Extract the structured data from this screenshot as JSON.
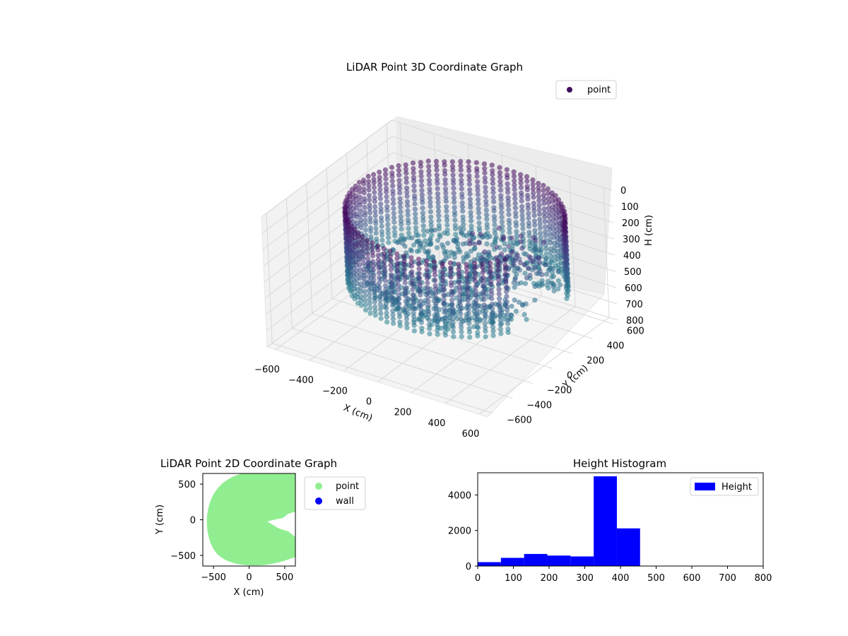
{
  "chart_data": [
    {
      "type": "scatter",
      "title": "LiDAR Point 3D Coordinate Graph",
      "xlabel": "X (cm)",
      "ylabel": "Y (cm)",
      "zlabel": "H (cm)",
      "xlim": [
        -650,
        650
      ],
      "ylim": [
        -650,
        650
      ],
      "zlim": [
        800,
        0
      ],
      "xticks": [
        "−600",
        "−400",
        "−200",
        "0",
        "200",
        "400",
        "600"
      ],
      "yticks": [
        "−600",
        "−400",
        "−200",
        "0",
        "200",
        "400",
        "600"
      ],
      "zticks": [
        "0",
        "100",
        "200",
        "300",
        "400",
        "500",
        "600",
        "700",
        "800"
      ],
      "legend": [
        "point"
      ],
      "legend_position": "top-right",
      "grid": true,
      "colormap": "viridis",
      "point_color": "#3e0f5e"
    },
    {
      "type": "scatter",
      "title": "LiDAR Point 2D Coordinate Graph",
      "xlabel": "X (cm)",
      "ylabel": "Y (cm)",
      "xlim": [
        -650,
        650
      ],
      "ylim": [
        -650,
        650
      ],
      "xticks": [
        "−500",
        "0",
        "500"
      ],
      "yticks": [
        "500",
        "0",
        "−500"
      ],
      "legend": [
        {
          "name": "point",
          "color": "#90ee90"
        },
        {
          "name": "wall",
          "color": "#0000ff"
        }
      ],
      "legend_position": "outside-right",
      "grid": false
    },
    {
      "type": "bar",
      "title": "Height Histogram",
      "xlim": [
        0,
        800
      ],
      "ylim": [
        0,
        5250
      ],
      "xticks": [
        "0",
        "100",
        "200",
        "300",
        "400",
        "500",
        "600",
        "700",
        "800"
      ],
      "yticks": [
        "0",
        "2000",
        "4000"
      ],
      "bin_edges": [
        0,
        65,
        130,
        195,
        260,
        325,
        390,
        455,
        520,
        585,
        650,
        715,
        780,
        845
      ],
      "values": [
        220,
        460,
        680,
        590,
        540,
        5050,
        2120,
        0,
        0,
        0,
        0,
        0,
        0
      ],
      "series": [
        {
          "name": "Height",
          "color": "#0000ff"
        }
      ],
      "legend_position": "top-right",
      "grid": false
    }
  ]
}
